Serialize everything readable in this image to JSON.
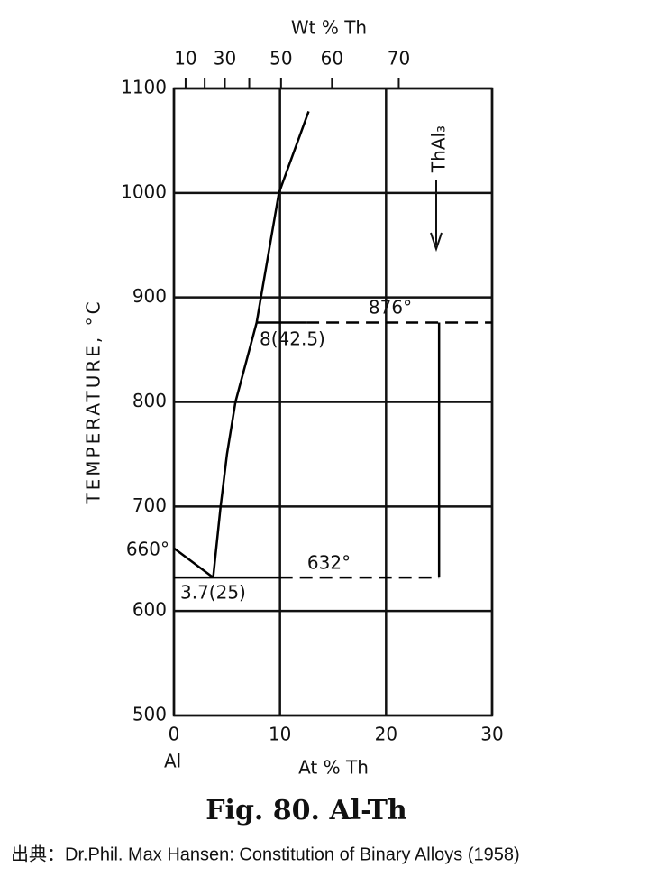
{
  "chart_data": {
    "type": "line",
    "xlabel": "At % Th",
    "x2label": "Wt % Th",
    "ylabel": "TEMPERATURE, °C",
    "xlim": [
      0,
      30
    ],
    "xticks": [
      0,
      10,
      20,
      30
    ],
    "ylim": [
      500,
      1100
    ],
    "yticks": [
      500,
      600,
      700,
      800,
      900,
      1000,
      1100
    ],
    "x2ticks": [
      10,
      20,
      30,
      40,
      50,
      60,
      70
    ],
    "x2ticks_at_pct": [
      1.1,
      2.9,
      4.8,
      7.1,
      10.1,
      14.9,
      21.2
    ],
    "x2tick_labels": [
      "10",
      null,
      "30",
      null,
      "50",
      "60",
      "70"
    ],
    "grid": true,
    "color": "#000000",
    "series": [
      {
        "x": [
          0,
          3.7
        ],
        "values": [
          660,
          632
        ],
        "dash": false
      },
      {
        "x": [
          3.7,
          4.4,
          5.0,
          5.8,
          7.8,
          8.2,
          9.9,
          12.7
        ],
        "values": [
          632,
          700,
          750,
          800,
          876,
          900,
          1000,
          1078
        ],
        "dash": false
      },
      {
        "x": [
          0,
          10
        ],
        "values": [
          632,
          632
        ],
        "dash": false
      },
      {
        "x": [
          10,
          25
        ],
        "values": [
          632,
          632
        ],
        "dash": true
      },
      {
        "x": [
          7.8,
          12.5
        ],
        "values": [
          876,
          876
        ],
        "dash": false
      },
      {
        "x": [
          12.5,
          30
        ],
        "values": [
          876,
          876
        ],
        "dash": true
      },
      {
        "x": [
          25,
          25
        ],
        "values": [
          876,
          632
        ],
        "dash": false
      }
    ],
    "annotations": [
      "660°",
      "632°",
      "876°",
      "3.7(25)",
      "8(42.5)",
      "ThAl₃",
      "Al"
    ],
    "caption": "Fig. 80. Al-Th"
  },
  "source": "出典：Dr.Phil. Max Hansen: Constitution of Binary Alloys (1958)"
}
